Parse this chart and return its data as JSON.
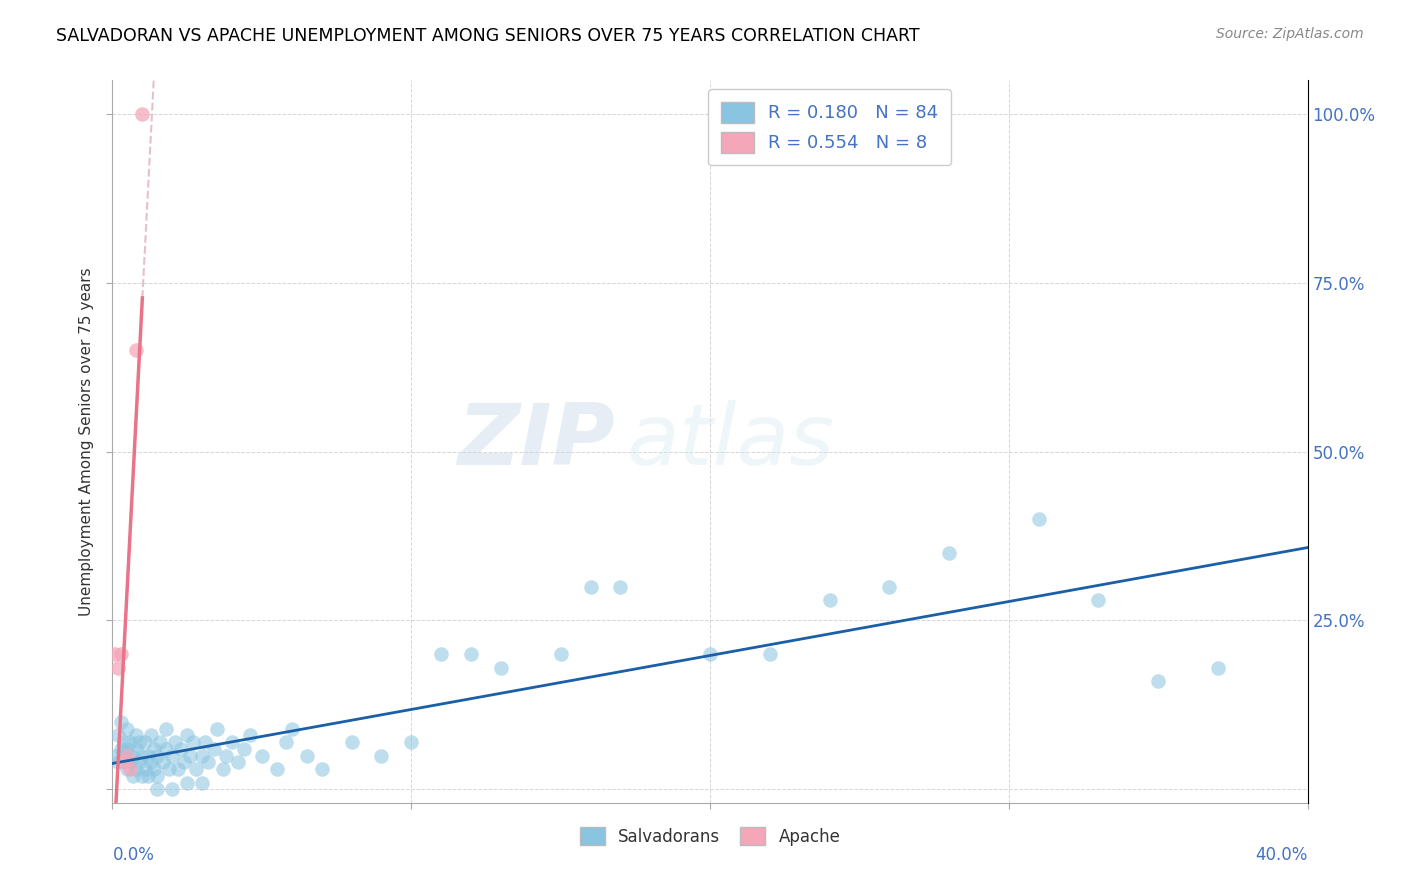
{
  "title": "SALVADORAN VS APACHE UNEMPLOYMENT AMONG SENIORS OVER 75 YEARS CORRELATION CHART",
  "source": "Source: ZipAtlas.com",
  "ylabel": "Unemployment Among Seniors over 75 years",
  "xlim": [
    0.0,
    0.4
  ],
  "ylim": [
    -0.02,
    1.05
  ],
  "watermark_zip": "ZIP",
  "watermark_atlas": "atlas",
  "legend_R_salv": "0.180",
  "legend_N_salv": "84",
  "legend_R_apache": "0.554",
  "legend_N_apache": "8",
  "salv_color": "#89c4e1",
  "apache_color": "#f4a7b9",
  "salv_trend_color": "#1a5fa8",
  "apache_trend_color": "#e8748a",
  "apache_dash_color": "#e0b0ba",
  "salv_x": [
    0.001,
    0.002,
    0.002,
    0.003,
    0.003,
    0.004,
    0.004,
    0.005,
    0.005,
    0.005,
    0.006,
    0.006,
    0.007,
    0.007,
    0.008,
    0.008,
    0.008,
    0.009,
    0.009,
    0.01,
    0.01,
    0.011,
    0.011,
    0.012,
    0.012,
    0.013,
    0.013,
    0.014,
    0.014,
    0.015,
    0.015,
    0.016,
    0.017,
    0.018,
    0.018,
    0.019,
    0.02,
    0.021,
    0.022,
    0.023,
    0.024,
    0.025,
    0.026,
    0.027,
    0.028,
    0.03,
    0.031,
    0.032,
    0.034,
    0.035,
    0.037,
    0.038,
    0.04,
    0.042,
    0.044,
    0.046,
    0.05,
    0.055,
    0.058,
    0.06,
    0.065,
    0.07,
    0.08,
    0.09,
    0.1,
    0.11,
    0.12,
    0.13,
    0.15,
    0.16,
    0.17,
    0.2,
    0.22,
    0.24,
    0.26,
    0.28,
    0.31,
    0.33,
    0.35,
    0.37,
    0.015,
    0.02,
    0.025,
    0.03
  ],
  "salv_y": [
    0.05,
    0.04,
    0.08,
    0.06,
    0.1,
    0.05,
    0.07,
    0.03,
    0.06,
    0.09,
    0.04,
    0.07,
    0.02,
    0.05,
    0.03,
    0.06,
    0.08,
    0.04,
    0.07,
    0.02,
    0.05,
    0.03,
    0.07,
    0.02,
    0.05,
    0.04,
    0.08,
    0.03,
    0.06,
    0.02,
    0.05,
    0.07,
    0.04,
    0.06,
    0.09,
    0.03,
    0.05,
    0.07,
    0.03,
    0.06,
    0.04,
    0.08,
    0.05,
    0.07,
    0.03,
    0.05,
    0.07,
    0.04,
    0.06,
    0.09,
    0.03,
    0.05,
    0.07,
    0.04,
    0.06,
    0.08,
    0.05,
    0.03,
    0.07,
    0.09,
    0.05,
    0.03,
    0.07,
    0.05,
    0.07,
    0.2,
    0.2,
    0.18,
    0.2,
    0.3,
    0.3,
    0.2,
    0.2,
    0.28,
    0.3,
    0.35,
    0.4,
    0.28,
    0.16,
    0.18,
    0.0,
    0.0,
    0.01,
    0.01
  ],
  "apache_x": [
    0.001,
    0.002,
    0.003,
    0.004,
    0.005,
    0.006,
    0.008,
    0.01
  ],
  "apache_y": [
    0.2,
    0.18,
    0.2,
    0.04,
    0.05,
    0.03,
    0.65,
    1.0
  ]
}
